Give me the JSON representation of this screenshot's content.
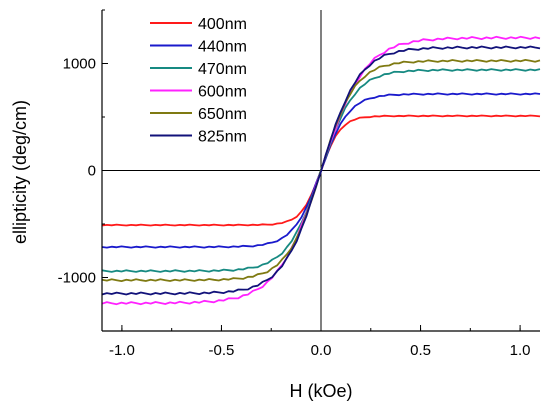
{
  "chart_data": {
    "type": "line",
    "title": "",
    "xlabel": "H (kOe)",
    "ylabel": "ellipticity (deg/cm)",
    "xlim": [
      -1.1,
      1.1
    ],
    "ylim": [
      -1500,
      1500
    ],
    "xticks": [
      -1.0,
      -0.5,
      0.0,
      0.5,
      1.0
    ],
    "xtick_labels": [
      "-1.0",
      "-0.5",
      "0.0",
      "0.5",
      "1.0"
    ],
    "yticks": [
      -1000,
      0,
      1000
    ],
    "ytick_labels": [
      "-1000",
      "0",
      "1000"
    ],
    "grid": false,
    "zero_lines": true,
    "legend": "top-left",
    "series": [
      {
        "name": "400nm",
        "color": "#ff1a1a",
        "saturation": 510,
        "width": 0.1
      },
      {
        "name": "440nm",
        "color": "#1a1acc",
        "saturation": 715,
        "width": 0.14
      },
      {
        "name": "470nm",
        "color": "#178a82",
        "saturation": 940,
        "width": 0.17
      },
      {
        "name": "600nm",
        "color": "#ff22ff",
        "saturation": 1240,
        "width": 0.22
      },
      {
        "name": "650nm",
        "color": "#7f7a12",
        "saturation": 1025,
        "width": 0.17
      },
      {
        "name": "825nm",
        "color": "#12127a",
        "saturation": 1150,
        "width": 0.19
      }
    ]
  }
}
